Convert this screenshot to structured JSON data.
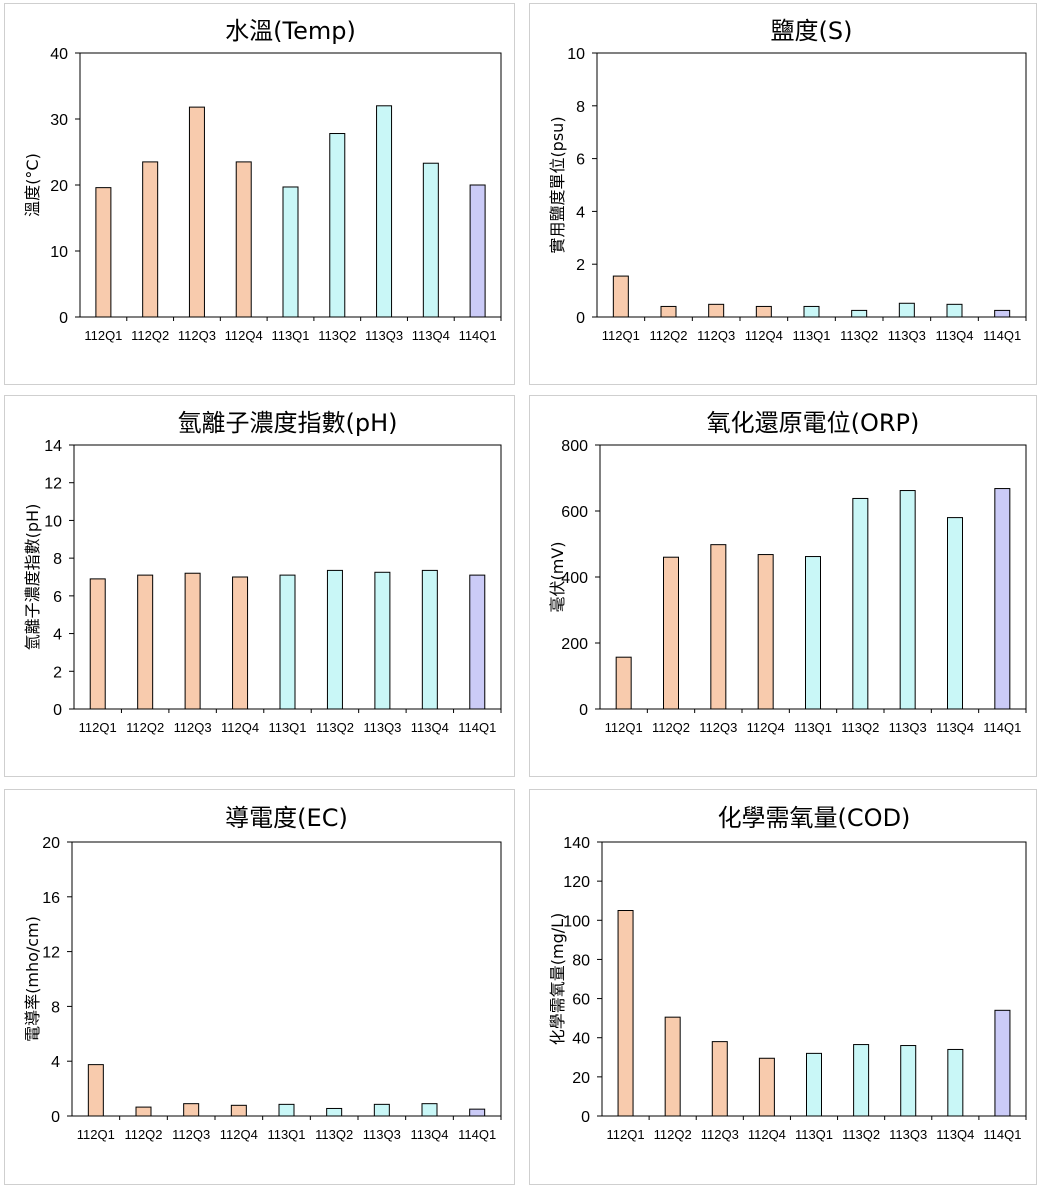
{
  "colors": {
    "112": "#F8CBAD",
    "113": "#C9F7F7",
    "114": "#CBCBF7",
    "bar_stroke": "#000000"
  },
  "chart_data": [
    {
      "type": "bar",
      "title": "水溫(Temp)",
      "ylabel": "溫度(°C)",
      "ylim": [
        0,
        40
      ],
      "yticks": [
        0,
        10,
        20,
        30,
        40
      ],
      "grid": false,
      "categories": [
        "112Q1",
        "112Q2",
        "112Q3",
        "112Q4",
        "113Q1",
        "113Q2",
        "113Q3",
        "113Q4",
        "114Q1"
      ],
      "values": [
        19.6,
        23.5,
        31.8,
        23.5,
        19.7,
        27.8,
        32.0,
        23.3,
        20.0
      ]
    },
    {
      "type": "bar",
      "title": "鹽度(S)",
      "ylabel": "實用鹽度單位(psu)",
      "ylim": [
        0,
        10
      ],
      "yticks": [
        0,
        2,
        4,
        6,
        8,
        10
      ],
      "grid": false,
      "categories": [
        "112Q1",
        "112Q2",
        "112Q3",
        "112Q4",
        "113Q1",
        "113Q2",
        "113Q3",
        "113Q4",
        "114Q1"
      ],
      "values": [
        1.55,
        0.4,
        0.48,
        0.4,
        0.4,
        0.25,
        0.52,
        0.48,
        0.25
      ]
    },
    {
      "type": "bar",
      "title": "氫離子濃度指數(pH)",
      "ylabel": "氫離子濃度指數(pH)",
      "ylim": [
        0,
        14
      ],
      "yticks": [
        0,
        2,
        4,
        6,
        8,
        10,
        12,
        14
      ],
      "grid": false,
      "categories": [
        "112Q1",
        "112Q2",
        "112Q3",
        "112Q4",
        "113Q1",
        "113Q2",
        "113Q3",
        "113Q4",
        "114Q1"
      ],
      "values": [
        6.9,
        7.1,
        7.2,
        7.0,
        7.1,
        7.35,
        7.25,
        7.35,
        7.1
      ]
    },
    {
      "type": "bar",
      "title": "氧化還原電位(ORP)",
      "ylabel": "毫伏(mV)",
      "ylim": [
        0,
        800
      ],
      "yticks": [
        0,
        200,
        400,
        600,
        800
      ],
      "grid": false,
      "categories": [
        "112Q1",
        "112Q2",
        "112Q3",
        "112Q4",
        "113Q1",
        "113Q2",
        "113Q3",
        "113Q4",
        "114Q1"
      ],
      "values": [
        157,
        460,
        498,
        468,
        462,
        638,
        662,
        580,
        668
      ]
    },
    {
      "type": "bar",
      "title": "導電度(EC)",
      "ylabel": "電導率(mho/cm)",
      "ylim": [
        0,
        20
      ],
      "yticks": [
        0,
        4,
        8,
        12,
        16,
        20
      ],
      "grid": false,
      "categories": [
        "112Q1",
        "112Q2",
        "112Q3",
        "112Q4",
        "113Q1",
        "113Q2",
        "113Q3",
        "113Q4",
        "114Q1"
      ],
      "values": [
        3.75,
        0.65,
        0.9,
        0.78,
        0.85,
        0.55,
        0.85,
        0.9,
        0.5
      ]
    },
    {
      "type": "bar",
      "title": "化學需氧量(COD)",
      "ylabel": "化學需氧量(mg/L)",
      "ylim": [
        0,
        140
      ],
      "yticks": [
        0,
        20,
        40,
        60,
        80,
        100,
        120,
        140
      ],
      "grid": false,
      "categories": [
        "112Q1",
        "112Q2",
        "112Q3",
        "112Q4",
        "113Q1",
        "113Q2",
        "113Q3",
        "113Q4",
        "114Q1"
      ],
      "values": [
        105,
        50.5,
        38,
        29.5,
        32,
        36.5,
        36,
        34,
        54
      ]
    }
  ]
}
